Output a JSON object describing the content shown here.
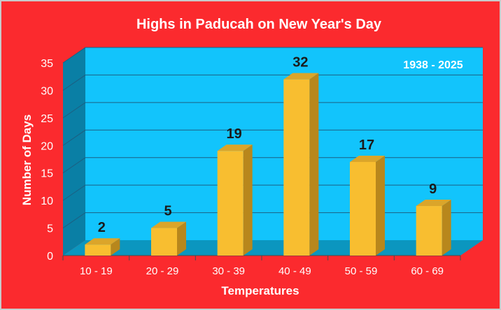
{
  "chart_data": {
    "type": "bar",
    "title": "Highs in Paducah on New Year's Day",
    "annotation": "1938 - 2025",
    "xlabel": "Temperatures",
    "ylabel": "Number of Days",
    "categories": [
      "10 - 19",
      "20 - 29",
      "30 - 39",
      "40 - 49",
      "50 - 59",
      "60 - 69"
    ],
    "values": [
      2,
      5,
      19,
      32,
      17,
      9
    ],
    "ylim": [
      0,
      35
    ],
    "yticks": [
      "0",
      "5",
      "10",
      "15",
      "20",
      "25",
      "30",
      "35"
    ],
    "data_labels": [
      "2",
      "5",
      "19",
      "32",
      "17",
      "9"
    ],
    "grid": true,
    "style_3d": true,
    "colors": {
      "background": "#fb2a2e",
      "plot_back": "#12c4fc",
      "plot_side": "#0a7fa5",
      "plot_floor": "#0b96bf",
      "bar_front": "#f8be30",
      "bar_top": "#dba52a",
      "bar_side": "#b8871c",
      "gridline": "#1c5f82"
    }
  }
}
